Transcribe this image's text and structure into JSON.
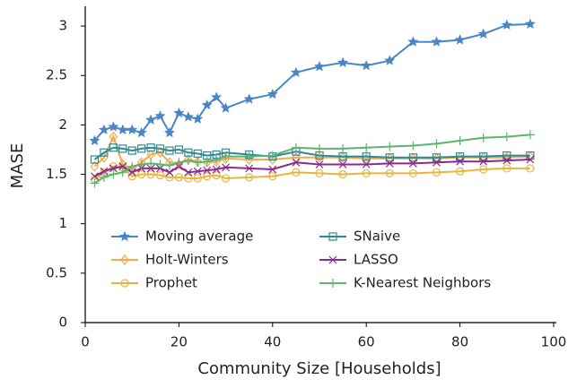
{
  "chart_data": {
    "type": "line",
    "x_label": "Community Size [Households]",
    "y_label": "MASE",
    "x": [
      2,
      4,
      6,
      8,
      10,
      12,
      14,
      16,
      18,
      20,
      22,
      24,
      26,
      28,
      30,
      35,
      40,
      45,
      50,
      55,
      60,
      65,
      70,
      75,
      80,
      85,
      90,
      95
    ],
    "series": [
      {
        "name": "Moving average",
        "color": "#4a86c5",
        "marker": "star",
        "values": [
          1.84,
          1.95,
          1.98,
          1.95,
          1.95,
          1.92,
          2.05,
          2.09,
          1.92,
          2.12,
          2.08,
          2.06,
          2.2,
          2.28,
          2.17,
          2.26,
          2.31,
          2.53,
          2.59,
          2.63,
          2.6,
          2.65,
          2.84,
          2.84,
          2.86,
          2.92,
          3.01,
          3.02
        ]
      },
      {
        "name": "Holt-Winters",
        "color": "#f5a84e",
        "marker": "diamond",
        "values": [
          1.58,
          1.67,
          1.88,
          1.6,
          1.55,
          1.62,
          1.7,
          1.72,
          1.62,
          1.6,
          1.65,
          1.63,
          1.62,
          1.63,
          1.66,
          1.65,
          1.65,
          1.67,
          1.67,
          1.67,
          1.66,
          1.66,
          1.66,
          1.66,
          1.67,
          1.67,
          1.67,
          1.68
        ]
      },
      {
        "name": "Prophet",
        "color": "#e9b43e",
        "marker": "circle",
        "values": [
          1.45,
          1.52,
          1.58,
          1.57,
          1.48,
          1.5,
          1.5,
          1.49,
          1.47,
          1.47,
          1.46,
          1.46,
          1.48,
          1.49,
          1.46,
          1.47,
          1.48,
          1.52,
          1.51,
          1.5,
          1.51,
          1.51,
          1.51,
          1.52,
          1.53,
          1.55,
          1.56,
          1.56
        ]
      },
      {
        "name": "SNaive",
        "color": "#2e8b92",
        "marker": "square",
        "values": [
          1.65,
          1.72,
          1.77,
          1.76,
          1.74,
          1.76,
          1.77,
          1.76,
          1.74,
          1.75,
          1.72,
          1.71,
          1.69,
          1.7,
          1.72,
          1.7,
          1.68,
          1.73,
          1.69,
          1.68,
          1.68,
          1.67,
          1.67,
          1.67,
          1.68,
          1.68,
          1.69,
          1.69
        ]
      },
      {
        "name": "LASSO",
        "color": "#8b2a8c",
        "marker": "x",
        "values": [
          1.48,
          1.53,
          1.56,
          1.58,
          1.52,
          1.56,
          1.56,
          1.56,
          1.52,
          1.58,
          1.52,
          1.53,
          1.54,
          1.55,
          1.57,
          1.56,
          1.55,
          1.62,
          1.6,
          1.6,
          1.6,
          1.61,
          1.61,
          1.62,
          1.63,
          1.63,
          1.64,
          1.65
        ]
      },
      {
        "name": "K-Nearest Neighbors",
        "color": "#5bb46f",
        "marker": "plus",
        "values": [
          1.41,
          1.47,
          1.5,
          1.52,
          1.58,
          1.6,
          1.61,
          1.6,
          1.59,
          1.62,
          1.64,
          1.62,
          1.63,
          1.65,
          1.68,
          1.68,
          1.69,
          1.77,
          1.76,
          1.76,
          1.77,
          1.78,
          1.79,
          1.81,
          1.84,
          1.87,
          1.88,
          1.9
        ]
      }
    ],
    "xlim": [
      0,
      100
    ],
    "xticks": [
      0,
      20,
      40,
      60,
      80,
      100
    ],
    "ylim": [
      0,
      3.2
    ],
    "yticks": [
      0,
      0.5,
      1,
      1.5,
      2,
      2.5,
      3
    ],
    "grid": false,
    "legend": "lower left"
  }
}
